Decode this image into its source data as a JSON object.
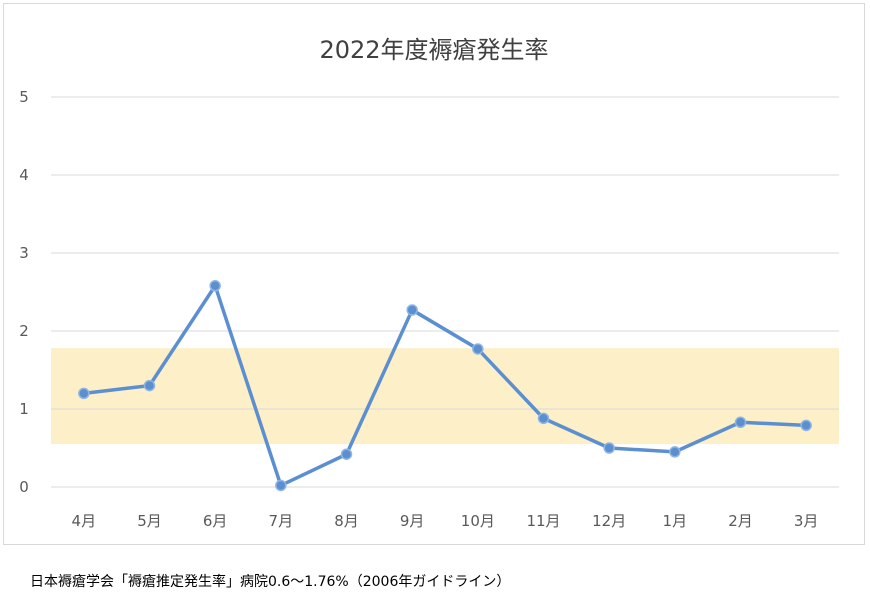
{
  "chart_data": {
    "type": "line",
    "title": "2022年度褥瘡発生率",
    "categories": [
      "4月",
      "5月",
      "6月",
      "7月",
      "8月",
      "9月",
      "10月",
      "11月",
      "12月",
      "1月",
      "2月",
      "3月"
    ],
    "series": [
      {
        "values": [
          1.2,
          1.3,
          2.58,
          0.02,
          0.42,
          2.27,
          1.77,
          0.88,
          0.5,
          0.45,
          0.83,
          0.79
        ]
      }
    ],
    "ylim": [
      0,
      5
    ],
    "yticks": [
      0,
      1,
      2,
      3,
      4,
      5
    ],
    "grid": true,
    "reference_band": {
      "from": 0.55,
      "to": 1.78,
      "color": "#fdefc7"
    },
    "colors": {
      "line": "#5b8fd0",
      "marker": "#5b8fd0"
    }
  },
  "footnote": "日本褥瘡学会「褥瘡推定発生率」病院0.6～1.76%（2006年ガイドライン）"
}
